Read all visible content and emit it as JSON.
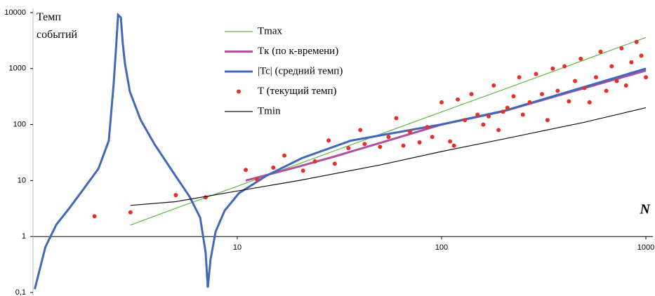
{
  "chart_data": {
    "type": "line",
    "y_label": "Темп событий",
    "x_label": "N",
    "xscale": "log",
    "yscale": "log",
    "xlim": [
      1,
      1000
    ],
    "ylim": [
      0.1,
      10000
    ],
    "xticks": [
      10,
      100,
      1000
    ],
    "yticks": [
      {
        "value": 0.1,
        "label": "0,1"
      },
      1,
      10,
      100,
      1000,
      10000
    ],
    "legend": "top",
    "series": [
      {
        "name": "Tmax",
        "color": "#62b84a",
        "style": "line",
        "x": [
          3,
          5,
          10,
          20,
          50,
          100,
          200,
          500,
          1000
        ],
        "values": [
          1.6,
          3.2,
          7.9,
          19.9,
          67,
          168,
          421,
          1424,
          3600
        ]
      },
      {
        "name": "Tк (по к-времени)",
        "color": "#b0509f",
        "style": "line",
        "x": [
          11,
          20,
          30,
          50,
          100,
          200,
          500,
          1000
        ],
        "values": [
          10,
          17.8,
          27,
          47,
          100,
          172,
          450,
          920
        ]
      },
      {
        "name": "|Tc| (средний темп)",
        "color": "#4169b8",
        "style": "line",
        "x": [
          1.02,
          1.15,
          1.3,
          1.52,
          1.78,
          2.09,
          2.35,
          2.48,
          2.56,
          2.61,
          2.69,
          2.75,
          2.82,
          2.98,
          3.36,
          3.93,
          4.98,
          5.84,
          6.58,
          7.0,
          7.17,
          7.4,
          7.83,
          8.67,
          10.2,
          13.9,
          20.7,
          36,
          99,
          205,
          1000
        ],
        "values": [
          0.115,
          0.65,
          1.63,
          3.35,
          7.3,
          16.3,
          51.6,
          516,
          2900,
          9130,
          8200,
          2900,
          1224,
          387,
          122,
          44.7,
          12.2,
          5.16,
          2.18,
          0.52,
          0.122,
          0.39,
          1.22,
          2.9,
          5.96,
          12.2,
          25.1,
          51.6,
          100,
          178,
          1000
        ]
      },
      {
        "name": "T (текущий темп)",
        "color": "#e8302a",
        "style": "points",
        "x": [
          2,
          3,
          5,
          7,
          11,
          12.5,
          15,
          17,
          21,
          24,
          28,
          30,
          35,
          40,
          42,
          50,
          55,
          60,
          65,
          70,
          78,
          85,
          90,
          100,
          110,
          115,
          120,
          130,
          140,
          150,
          160,
          170,
          180,
          190,
          200,
          210,
          225,
          240,
          250,
          270,
          290,
          310,
          330,
          350,
          370,
          400,
          420,
          450,
          480,
          500,
          530,
          570,
          600,
          640,
          680,
          720,
          760,
          800,
          850,
          900,
          950,
          1000
        ],
        "values": [
          2.3,
          2.7,
          5.5,
          5,
          15.5,
          10.5,
          17,
          28,
          15,
          22,
          52,
          20,
          38,
          80,
          45,
          40,
          60,
          130,
          42,
          75,
          48,
          90,
          60,
          250,
          50,
          42,
          280,
          120,
          350,
          150,
          100,
          140,
          500,
          80,
          170,
          200,
          320,
          700,
          150,
          250,
          800,
          350,
          120,
          1000,
          400,
          1100,
          260,
          600,
          1500,
          450,
          250,
          700,
          2000,
          400,
          1100,
          600,
          2300,
          500,
          1300,
          3000,
          1700,
          700
        ]
      },
      {
        "name": "Tmin",
        "color": "#111111",
        "style": "line",
        "x": [
          3,
          5,
          10,
          20,
          50,
          100,
          200,
          500,
          1000
        ],
        "values": [
          3.6,
          4.2,
          6.5,
          10,
          19,
          33,
          55,
          110,
          200
        ]
      }
    ]
  }
}
